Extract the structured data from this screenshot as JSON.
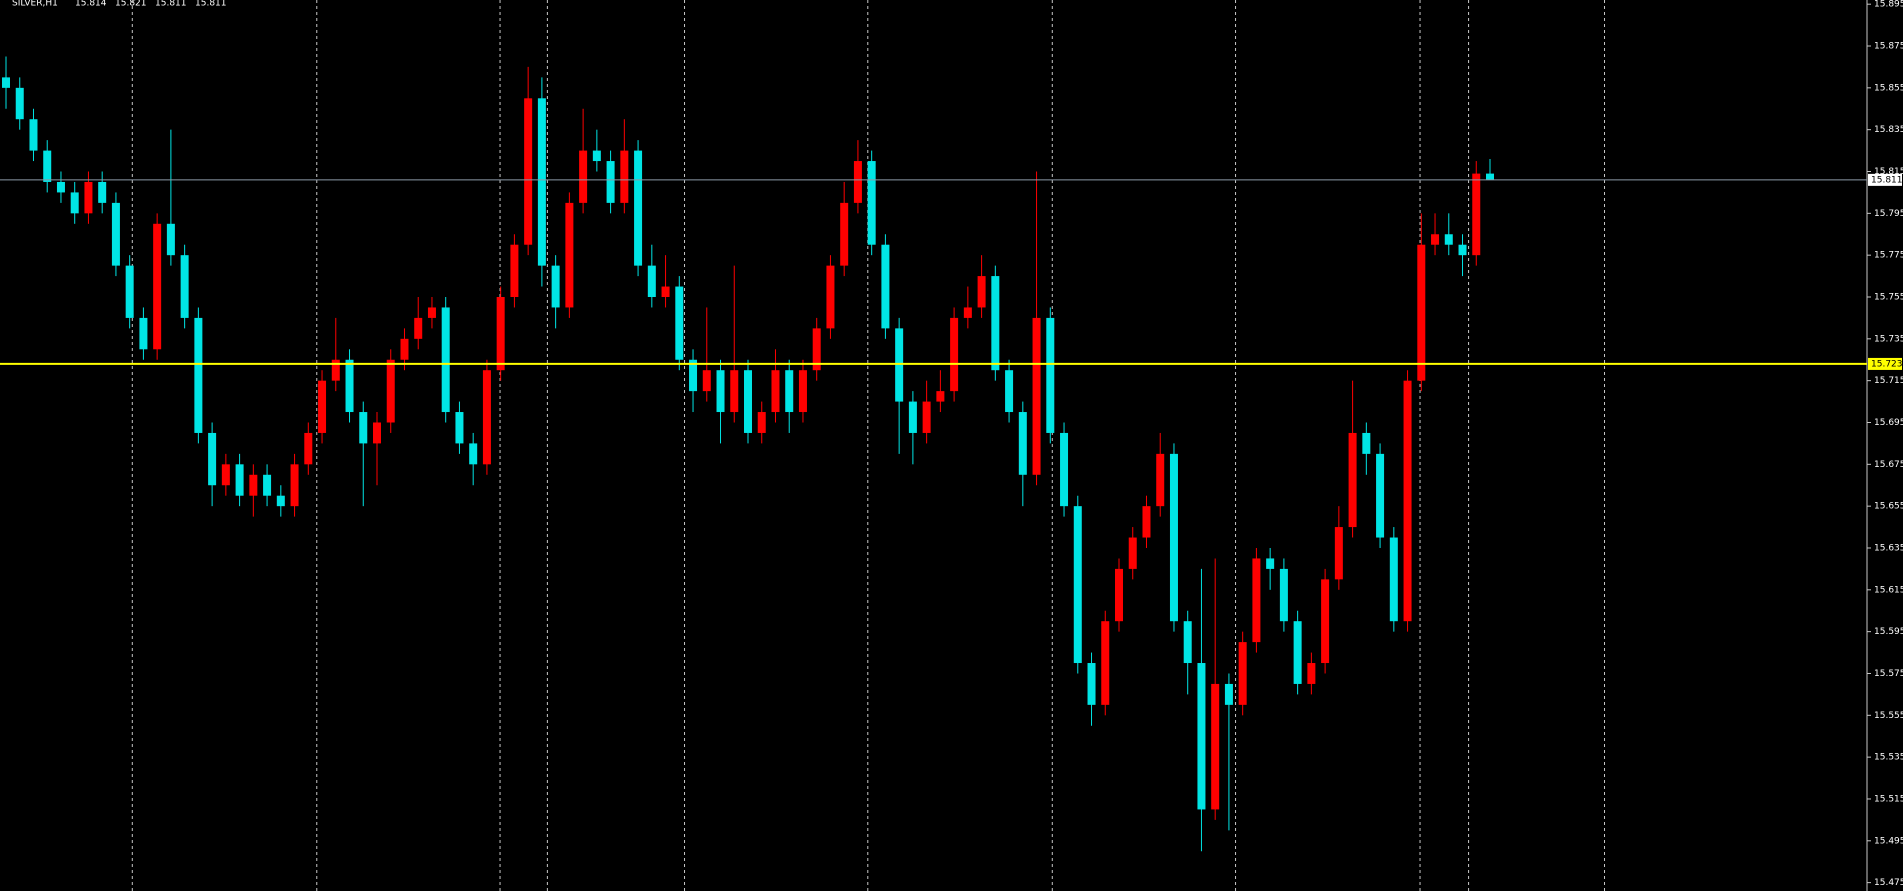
{
  "chart_data": {
    "type": "candlestick",
    "title": "SILVER,H1",
    "up_color": "#ff0000",
    "down_color": "#00e5e5",
    "ylim": [
      15.471,
      15.897
    ],
    "yticks": [
      15.895,
      15.875,
      15.855,
      15.835,
      15.815,
      15.795,
      15.775,
      15.755,
      15.735,
      15.715,
      15.695,
      15.675,
      15.655,
      15.635,
      15.615,
      15.595,
      15.575,
      15.555,
      15.535,
      15.515,
      15.495,
      15.475
    ],
    "price_lines": [
      {
        "value": 15.811,
        "color": "#8c9aa8"
      },
      {
        "value": 15.723,
        "color": "#ffff00"
      }
    ],
    "candles": [
      [
        15.86,
        15.87,
        15.845,
        15.855
      ],
      [
        15.855,
        15.86,
        15.835,
        15.84
      ],
      [
        15.84,
        15.845,
        15.82,
        15.825
      ],
      [
        15.825,
        15.83,
        15.805,
        15.81
      ],
      [
        15.81,
        15.815,
        15.8,
        15.805
      ],
      [
        15.805,
        15.81,
        15.79,
        15.795
      ],
      [
        15.795,
        15.815,
        15.79,
        15.81
      ],
      [
        15.81,
        15.815,
        15.795,
        15.8
      ],
      [
        15.8,
        15.805,
        15.765,
        15.77
      ],
      [
        15.77,
        15.775,
        15.74,
        15.745
      ],
      [
        15.745,
        15.75,
        15.725,
        15.73
      ],
      [
        15.73,
        15.795,
        15.725,
        15.79
      ],
      [
        15.79,
        15.835,
        15.77,
        15.775
      ],
      [
        15.775,
        15.78,
        15.74,
        15.745
      ],
      [
        15.745,
        15.75,
        15.685,
        15.69
      ],
      [
        15.69,
        15.695,
        15.655,
        15.665
      ],
      [
        15.665,
        15.68,
        15.66,
        15.675
      ],
      [
        15.675,
        15.68,
        15.655,
        15.66
      ],
      [
        15.66,
        15.675,
        15.65,
        15.67
      ],
      [
        15.67,
        15.675,
        15.655,
        15.66
      ],
      [
        15.66,
        15.665,
        15.65,
        15.655
      ],
      [
        15.655,
        15.68,
        15.65,
        15.675
      ],
      [
        15.675,
        15.695,
        15.67,
        15.69
      ],
      [
        15.69,
        15.72,
        15.685,
        15.715
      ],
      [
        15.715,
        15.745,
        15.71,
        15.725
      ],
      [
        15.725,
        15.73,
        15.695,
        15.7
      ],
      [
        15.7,
        15.705,
        15.655,
        15.685
      ],
      [
        15.685,
        15.7,
        15.665,
        15.695
      ],
      [
        15.695,
        15.73,
        15.69,
        15.725
      ],
      [
        15.725,
        15.74,
        15.72,
        15.735
      ],
      [
        15.735,
        15.755,
        15.73,
        15.745
      ],
      [
        15.745,
        15.755,
        15.74,
        15.75
      ],
      [
        15.75,
        15.755,
        15.695,
        15.7
      ],
      [
        15.7,
        15.705,
        15.68,
        15.685
      ],
      [
        15.685,
        15.69,
        15.665,
        15.675
      ],
      [
        15.675,
        15.725,
        15.67,
        15.72
      ],
      [
        15.72,
        15.76,
        15.715,
        15.755
      ],
      [
        15.755,
        15.785,
        15.75,
        15.78
      ],
      [
        15.78,
        15.865,
        15.775,
        15.85
      ],
      [
        15.85,
        15.86,
        15.76,
        15.77
      ],
      [
        15.77,
        15.775,
        15.74,
        15.75
      ],
      [
        15.75,
        15.805,
        15.745,
        15.8
      ],
      [
        15.8,
        15.845,
        15.795,
        15.825
      ],
      [
        15.825,
        15.835,
        15.815,
        15.82
      ],
      [
        15.82,
        15.825,
        15.795,
        15.8
      ],
      [
        15.8,
        15.84,
        15.795,
        15.825
      ],
      [
        15.825,
        15.83,
        15.765,
        15.77
      ],
      [
        15.77,
        15.78,
        15.75,
        15.755
      ],
      [
        15.755,
        15.775,
        15.75,
        15.76
      ],
      [
        15.76,
        15.765,
        15.72,
        15.725
      ],
      [
        15.725,
        15.73,
        15.7,
        15.71
      ],
      [
        15.71,
        15.75,
        15.705,
        15.72
      ],
      [
        15.72,
        15.725,
        15.685,
        15.7
      ],
      [
        15.7,
        15.77,
        15.695,
        15.72
      ],
      [
        15.72,
        15.725,
        15.685,
        15.69
      ],
      [
        15.69,
        15.705,
        15.685,
        15.7
      ],
      [
        15.7,
        15.73,
        15.695,
        15.72
      ],
      [
        15.72,
        15.725,
        15.69,
        15.7
      ],
      [
        15.7,
        15.725,
        15.695,
        15.72
      ],
      [
        15.72,
        15.745,
        15.715,
        15.74
      ],
      [
        15.74,
        15.775,
        15.735,
        15.77
      ],
      [
        15.77,
        15.81,
        15.765,
        15.8
      ],
      [
        15.8,
        15.83,
        15.795,
        15.82
      ],
      [
        15.82,
        15.825,
        15.775,
        15.78
      ],
      [
        15.78,
        15.785,
        15.735,
        15.74
      ],
      [
        15.74,
        15.745,
        15.68,
        15.705
      ],
      [
        15.705,
        15.71,
        15.675,
        15.69
      ],
      [
        15.69,
        15.715,
        15.685,
        15.705
      ],
      [
        15.705,
        15.72,
        15.7,
        15.71
      ],
      [
        15.71,
        15.75,
        15.705,
        15.745
      ],
      [
        15.745,
        15.76,
        15.74,
        15.75
      ],
      [
        15.75,
        15.775,
        15.745,
        15.765
      ],
      [
        15.765,
        15.77,
        15.715,
        15.72
      ],
      [
        15.72,
        15.725,
        15.695,
        15.7
      ],
      [
        15.7,
        15.705,
        15.655,
        15.67
      ],
      [
        15.67,
        15.815,
        15.665,
        15.745
      ],
      [
        15.745,
        15.75,
        15.685,
        15.69
      ],
      [
        15.69,
        15.695,
        15.65,
        15.655
      ],
      [
        15.655,
        15.66,
        15.575,
        15.58
      ],
      [
        15.58,
        15.585,
        15.55,
        15.56
      ],
      [
        15.56,
        15.605,
        15.555,
        15.6
      ],
      [
        15.6,
        15.63,
        15.595,
        15.625
      ],
      [
        15.625,
        15.645,
        15.62,
        15.64
      ],
      [
        15.64,
        15.66,
        15.635,
        15.655
      ],
      [
        15.655,
        15.69,
        15.65,
        15.68
      ],
      [
        15.68,
        15.685,
        15.595,
        15.6
      ],
      [
        15.6,
        15.605,
        15.565,
        15.58
      ],
      [
        15.58,
        15.625,
        15.49,
        15.51
      ],
      [
        15.51,
        15.63,
        15.505,
        15.57
      ],
      [
        15.57,
        15.575,
        15.5,
        15.56
      ],
      [
        15.56,
        15.595,
        15.555,
        15.59
      ],
      [
        15.59,
        15.635,
        15.585,
        15.63
      ],
      [
        15.63,
        15.635,
        15.615,
        15.625
      ],
      [
        15.625,
        15.63,
        15.595,
        15.6
      ],
      [
        15.6,
        15.605,
        15.565,
        15.57
      ],
      [
        15.57,
        15.585,
        15.565,
        15.58
      ],
      [
        15.58,
        15.625,
        15.575,
        15.62
      ],
      [
        15.62,
        15.655,
        15.615,
        15.645
      ],
      [
        15.645,
        15.715,
        15.64,
        15.69
      ],
      [
        15.69,
        15.695,
        15.67,
        15.68
      ],
      [
        15.68,
        15.685,
        15.635,
        15.64
      ],
      [
        15.64,
        15.645,
        15.595,
        15.6
      ],
      [
        15.6,
        15.72,
        15.595,
        15.715
      ],
      [
        15.715,
        15.795,
        15.71,
        15.78
      ],
      [
        15.78,
        15.795,
        15.775,
        15.785
      ],
      [
        15.785,
        15.795,
        15.775,
        15.78
      ],
      [
        15.78,
        15.785,
        15.765,
        15.775
      ],
      [
        15.775,
        15.82,
        15.77,
        15.814
      ],
      [
        15.814,
        15.821,
        15.811,
        15.811
      ]
    ]
  }
}
